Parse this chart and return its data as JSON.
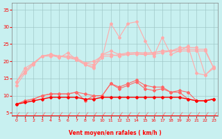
{
  "x": [
    0,
    1,
    2,
    3,
    4,
    5,
    6,
    7,
    8,
    9,
    10,
    11,
    12,
    13,
    14,
    15,
    16,
    17,
    18,
    19,
    20,
    21,
    22,
    23
  ],
  "background_color": "#c8f0f0",
  "grid_color": "#a0c8c8",
  "xlabel": "Vent moyen/en rafales ( km/h )",
  "ylabel_ticks": [
    5,
    10,
    15,
    20,
    25,
    30,
    35
  ],
  "ylim": [
    4,
    37
  ],
  "xlim": [
    -0.5,
    23.5
  ],
  "line1_color": "#ffaaaa",
  "line5_color": "#ff6666",
  "line7_color": "#ff0000",
  "line1_y": [
    13,
    16.5,
    19,
    21.5,
    21.5,
    21.5,
    21.5,
    20.5,
    19,
    18.5,
    21,
    31,
    27,
    31,
    31.5,
    26,
    21.5,
    27,
    22,
    23,
    24.5,
    16.5,
    16,
    18
  ],
  "line2_y": [
    14,
    17,
    19.5,
    21.5,
    22,
    21.5,
    21,
    20.5,
    19.5,
    19,
    22,
    23,
    22,
    22,
    22,
    22,
    22,
    22.5,
    23,
    23,
    23,
    23,
    23,
    18
  ],
  "line3_y": [
    14,
    17,
    19.5,
    21.5,
    22,
    21.5,
    21.5,
    21,
    19.5,
    20,
    21.5,
    21.5,
    22,
    22.5,
    22.5,
    22.5,
    22.5,
    23,
    23,
    23.5,
    23.5,
    23.5,
    23.5,
    18
  ],
  "line4_y": [
    14,
    18,
    19.5,
    21.5,
    22,
    21,
    22.5,
    20.5,
    19,
    18,
    22,
    22,
    21.5,
    22,
    22.5,
    22,
    22.5,
    23,
    23,
    24,
    24,
    24,
    16,
    18.5
  ],
  "line5_y": [
    7.5,
    8.5,
    9,
    10,
    10.5,
    10.5,
    10.5,
    11,
    10.5,
    10,
    10,
    13.5,
    12.5,
    13.5,
    14.5,
    13,
    12.5,
    12.5,
    11,
    11.5,
    11,
    8.5,
    8.5,
    9
  ],
  "line6_y": [
    7.5,
    8.5,
    9,
    10,
    10.5,
    10.5,
    10.5,
    11,
    8.5,
    10,
    10,
    13.5,
    12,
    13,
    14,
    12,
    11.5,
    12,
    11,
    11,
    9,
    8.5,
    8.5,
    9
  ],
  "line7_y": [
    7.5,
    8,
    8.5,
    9,
    9.5,
    9.5,
    9.5,
    9.5,
    9,
    9,
    9.5,
    9.5,
    9.5,
    9.5,
    9.5,
    9.5,
    9.5,
    9.5,
    9.5,
    9.5,
    9,
    8.5,
    8.5,
    9
  ],
  "arrow_color": "#ff6060",
  "xlabel_color": "#ff0000",
  "tick_color": "#ff0000",
  "axis_color": "#808080"
}
